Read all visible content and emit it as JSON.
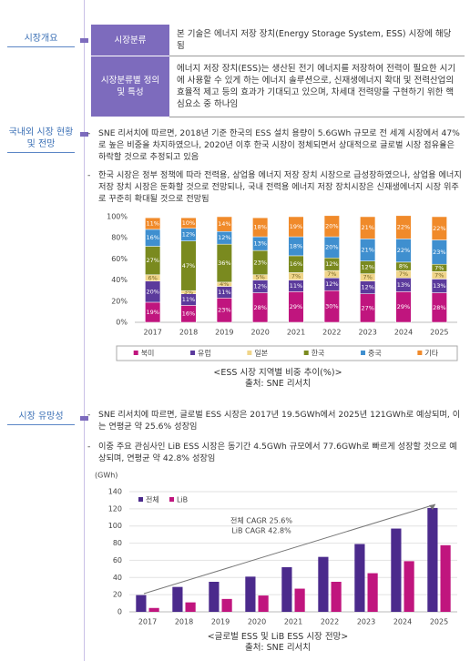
{
  "sections": [
    {
      "label": "시장개요"
    },
    {
      "label": "국내외 시장 현황 및 전망",
      "bullets": [
        "SNE 리서치에 따르면, 2018년 기준 한국의 ESS 설치 용량이 5.6GWh 규모로 전 세계 시장에서 47%로 높은 비중을 차지하였으나, 2020년 이후 한국 시장이 정체되면서 상대적으로 글로벌 시장 점유율은 하락할 것으로 추정되고 있음",
        "한국 시장은 정부 정책에 따라 전력용, 상업용 에너지 저장 장치 시장으로 급성장하였으나, 상업용 에너지 저장 장치 시장은 둔화할 것으로 전망되나, 국내 전력용 에너지 저장 장치시장은 신재생에너지 시장 위주로 꾸준히 확대될 것으로 전망됨"
      ]
    },
    {
      "label": "시장 유망성",
      "bullets": [
        "SNE 리서치에 따르면, 글로벌 ESS 시장은 2017년 19.5GWh에서 2025년 121GWh로 예상되며, 이는 연평균 약 25.6% 성장임",
        "이중 주요 관심사인 LiB ESS 시장은 동기간 4.5GWh 규모에서 77.6GWh로 빠르게 성장할 것으로 예상되며, 연평균 약 42.8% 성장임"
      ]
    }
  ],
  "table": {
    "rows": [
      [
        "시장분류",
        "본 기술은 에너지 저장 장치(Energy Storage System, ESS) 시장에 해당됨"
      ],
      [
        "시장분류별 정의 및 특성",
        "에너지 저장 장치(ESS)는 생산된 전기 에너지를 저장하여 전력이 필요한 시기에 사용할 수 있게 하는 에너지 솔루션으로, 신재생에너지 확대 및 전력산업의 효율적 제고 등의 효과가 기대되고 있으며, 차세대 전력망을 구현하기 위한 핵심요소 중 하나임"
      ]
    ]
  },
  "chart_data": [
    {
      "type": "bar",
      "stacked": true,
      "caption": "<ESS 시장 지역별 비중 추이(%)>",
      "source": "출처: SNE 리서치",
      "categories": [
        "2017",
        "2018",
        "2019",
        "2020",
        "2021",
        "2022",
        "2023",
        "2024",
        "2025"
      ],
      "ylim": [
        0,
        100
      ],
      "yticks": [
        {
          "value": 0,
          "label": "0%"
        },
        {
          "value": 20,
          "label": "20%"
        },
        {
          "value": 40,
          "label": "40%"
        },
        {
          "value": 60,
          "label": "60%"
        },
        {
          "value": 80,
          "label": "80%"
        },
        {
          "value": 100,
          "label": "100%"
        }
      ],
      "legend": "bottom",
      "series": [
        {
          "name": "북미",
          "color": "#c0157e",
          "values": [
            19,
            16,
            23,
            28,
            29,
            30,
            27,
            29,
            28
          ],
          "value_labels": [
            "19%",
            "16%",
            "23%",
            "28%",
            "29%",
            "30%",
            "27%",
            "29%",
            "28%"
          ]
        },
        {
          "name": "유럽",
          "color": "#5b3a9c",
          "values": [
            20,
            11,
            11,
            12,
            11,
            12,
            12,
            13,
            13
          ],
          "value_labels": [
            "20%",
            "11%",
            "11%",
            "12%",
            "11%",
            "12%",
            "12%",
            "13%",
            "13%"
          ]
        },
        {
          "name": "일본",
          "color": "#f0d58a",
          "values": [
            6,
            3,
            4,
            5,
            7,
            7,
            7,
            7,
            7
          ],
          "value_labels": [
            "6%",
            "3%",
            "4%",
            "5%",
            "7%",
            "7%",
            "7%",
            "7%",
            "7%"
          ]
        },
        {
          "name": "한국",
          "color": "#7a8a1f",
          "values": [
            27,
            47,
            36,
            23,
            16,
            12,
            12,
            8,
            7
          ],
          "value_labels": [
            "27%",
            "47%",
            "36%",
            "23%",
            "16%",
            "12%",
            "12%",
            "8%",
            "7%"
          ]
        },
        {
          "name": "중국",
          "color": "#3f8fcf",
          "values": [
            16,
            12,
            12,
            13,
            18,
            20,
            21,
            22,
            23
          ],
          "value_labels": [
            "16%",
            "12%",
            "12%",
            "13%",
            "18%",
            "20%",
            "21%",
            "22%",
            "23%"
          ]
        },
        {
          "name": "기타",
          "color": "#f08a2a",
          "values": [
            11,
            10,
            14,
            18,
            19,
            20,
            21,
            22,
            22
          ],
          "value_labels": [
            "11%",
            "10%",
            "14%",
            "18%",
            "19%",
            "20%",
            "21%",
            "22%",
            "22%"
          ]
        }
      ]
    },
    {
      "type": "bar",
      "stacked": false,
      "caption": "<글로벌 ESS 및 LiB ESS 시장 전망>",
      "source": "출처: SNE 리서치",
      "y_label": "(GWh)",
      "categories": [
        "2017",
        "2018",
        "2019",
        "2020",
        "2021",
        "2022",
        "2023",
        "2024",
        "2025"
      ],
      "ylim": [
        0,
        140
      ],
      "yticks": [
        0,
        20,
        40,
        60,
        80,
        100,
        120,
        140
      ],
      "grid": true,
      "legend": "upper left",
      "annotations": [
        "전체 CAGR 25.6%",
        "LiB CAGR 42.8%"
      ],
      "series": [
        {
          "name": "전체",
          "color": "#4b2a8c",
          "values": [
            19.5,
            29,
            35,
            41,
            52,
            64,
            79,
            97,
            121
          ]
        },
        {
          "name": "LiB",
          "color": "#c0157e",
          "values": [
            4.5,
            11,
            15,
            19,
            27,
            35,
            45,
            59,
            77.6
          ]
        }
      ]
    }
  ]
}
